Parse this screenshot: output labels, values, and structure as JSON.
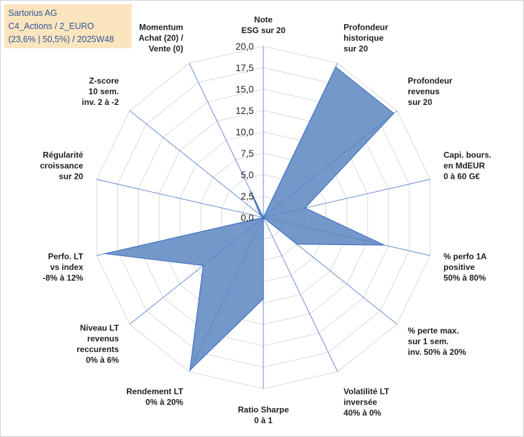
{
  "info": {
    "line1": "Sartorius AG",
    "line2": "C4_Actions / 2_EURO",
    "line3": "(23,6% | 50,5%) / 2025W48"
  },
  "colors": {
    "fill": "#5b86bf",
    "fill_opacity": "0.85",
    "stroke": "#4472c4",
    "grid": "#d9d9d9",
    "spoke": "#4472c4",
    "info_bg": "#fbe5bf",
    "info_text": "#2f5597"
  },
  "chart_data": {
    "type": "radar",
    "title": "",
    "rmin": 0,
    "rmax": 20,
    "ticks": [
      "0,0",
      "2,5",
      "5,0",
      "7,5",
      "10,0",
      "12,5",
      "15,0",
      "17,5",
      "20,0"
    ],
    "axes": [
      {
        "lines": [
          "Note",
          "ESG sur 20"
        ],
        "value": 0.0
      },
      {
        "lines": [
          "Profondeur",
          "historique",
          "sur 20"
        ],
        "value": 19.5
      },
      {
        "lines": [
          "Profondeur",
          "revenus",
          "sur 20"
        ],
        "value": 19.5
      },
      {
        "lines": [
          "Capi. bours.",
          "en MdEUR",
          "0 à 60 G€"
        ],
        "value": 5.0
      },
      {
        "lines": [
          "% perfo 1A",
          "positive",
          "50% à 80%"
        ],
        "value": 14.5
      },
      {
        "lines": [
          "% perte max.",
          "sur 1 sem.",
          "inv. 50% à 20%"
        ],
        "value": 5.0
      },
      {
        "lines": [
          "Volatilité LT",
          "inversée",
          "40% à 0%"
        ],
        "value": 0.0
      },
      {
        "lines": [
          "Ratio Sharpe",
          "0 à 1"
        ],
        "value": 9.5
      },
      {
        "lines": [
          "Rendement LT",
          "0% à 20%"
        ],
        "value": 19.8
      },
      {
        "lines": [
          "Niveau LT",
          "revenus",
          "reccurents",
          "0% à 6%"
        ],
        "value": 9.0
      },
      {
        "lines": [
          "Perfo. LT",
          "vs index",
          "-8% à 12%"
        ],
        "value": 19.0
      },
      {
        "lines": [
          "Régularité",
          "croissance",
          "sur 20"
        ],
        "value": 0.0
      },
      {
        "lines": [
          "Z-score",
          "10 sem.",
          "inv. 2 à -2"
        ],
        "value": 0.5
      },
      {
        "lines": [
          "Momentum",
          "Achat (20) /",
          "Vente (0)"
        ],
        "value": 3.5
      }
    ]
  }
}
